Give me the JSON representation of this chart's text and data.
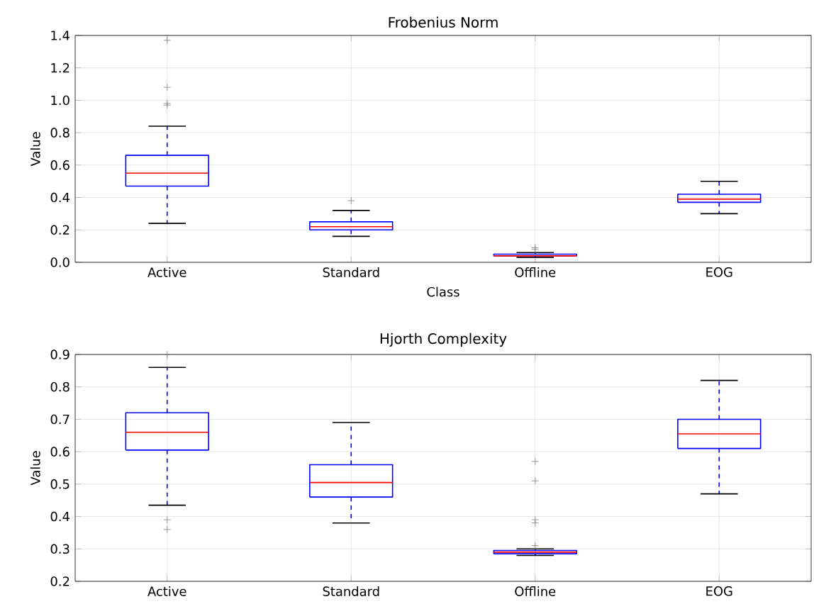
{
  "chart_data": [
    {
      "type": "box",
      "title": "Frobenius Norm",
      "xlabel": "Class",
      "ylabel": "Value",
      "categories": [
        "Active",
        "Standard",
        "Offline",
        "EOG"
      ],
      "color": "#0000ff",
      "ylim": [
        0,
        1.4
      ],
      "yticks": [
        {
          "value": 0,
          "label": "0.0"
        },
        0.2,
        0.4,
        0.6,
        0.8,
        {
          "value": 1,
          "label": "1.0"
        },
        1.2,
        1.4
      ],
      "grid": true,
      "marker": "cross",
      "boxes": [
        {
          "low": 0.24,
          "q1": 0.47,
          "median": 0.55,
          "q3": 0.66,
          "high": 0.84,
          "outliers": [
            0.97,
            0.98,
            1.08,
            1.37
          ]
        },
        {
          "low": 0.16,
          "q1": 0.2,
          "median": 0.22,
          "q3": 0.25,
          "high": 0.32,
          "outliers": [
            0.38
          ]
        },
        {
          "low": 0.03,
          "q1": 0.04,
          "median": 0.04,
          "q3": 0.05,
          "high": 0.06,
          "outliers": [
            0.08,
            0.09
          ]
        },
        {
          "low": 0.3,
          "q1": 0.37,
          "median": 0.39,
          "q3": 0.42,
          "high": 0.5
        }
      ]
    },
    {
      "type": "box",
      "title": "Hjorth Complexity",
      "ylabel": "Value",
      "categories": [
        "Active",
        "Standard",
        "Offline",
        "EOG"
      ],
      "color": "#0000ff",
      "ylim": [
        0.2,
        0.9
      ],
      "yticks": [
        0.2,
        0.3,
        0.4,
        0.5,
        0.6,
        0.7,
        0.8,
        0.9
      ],
      "grid": true,
      "marker": "cross",
      "boxes": [
        {
          "low": 0.435,
          "q1": 0.605,
          "median": 0.66,
          "q3": 0.72,
          "high": 0.86,
          "outliers": [
            0.36,
            0.39,
            0.9
          ]
        },
        {
          "low": 0.38,
          "q1": 0.46,
          "median": 0.505,
          "q3": 0.56,
          "high": 0.69
        },
        {
          "low": 0.28,
          "q1": 0.285,
          "median": 0.29,
          "q3": 0.295,
          "high": 0.3,
          "outliers": [
            0.31,
            0.38,
            0.39,
            0.51,
            0.57
          ]
        },
        {
          "low": 0.47,
          "q1": 0.61,
          "median": 0.655,
          "q3": 0.7,
          "high": 0.82
        }
      ]
    }
  ]
}
